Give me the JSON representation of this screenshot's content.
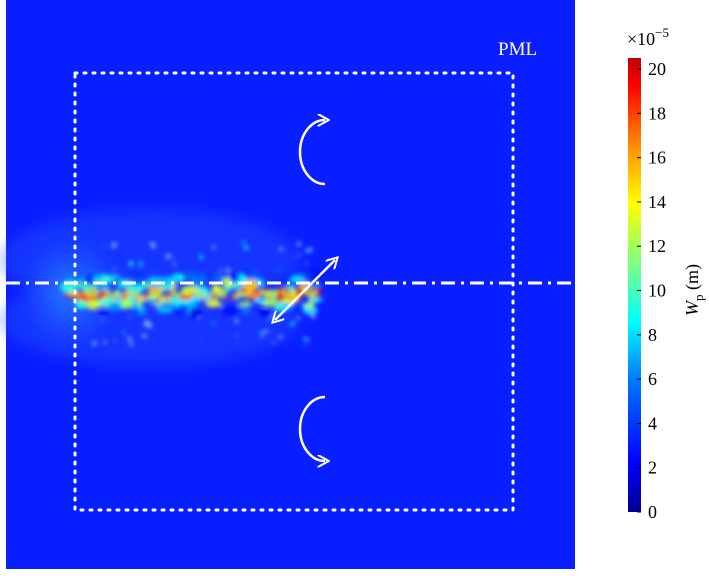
{
  "chart_data": {
    "type": "heatmap",
    "title": "",
    "region_label": "PML",
    "colorbar": {
      "label_symbol": "W",
      "label_subscript": "p",
      "label_unit": " (m)",
      "exponent_label": "×10",
      "exponent_power": "−5",
      "ticks": [
        "0",
        "2",
        "4",
        "6",
        "8",
        "10",
        "12",
        "14",
        "16",
        "18",
        "20"
      ],
      "range": [
        0,
        20.5
      ],
      "colormap": [
        "#00008f",
        "#0000ff",
        "#0080ff",
        "#00ffff",
        "#80ff80",
        "#ffff00",
        "#ff8000",
        "#ff0000",
        "#800000"
      ]
    },
    "field": {
      "background_value": 0.6,
      "hotspot_band": "beam along horizontal symmetry line",
      "max_value": 20
    },
    "annotations": {
      "rotation_arrows": 2,
      "bidirectional_arrow": 1,
      "symmetry_line": "dash-dot",
      "inner_boundary": "dotted square"
    },
    "colors": {
      "background": "#0a1fff",
      "annotation": "#ffffff"
    }
  }
}
